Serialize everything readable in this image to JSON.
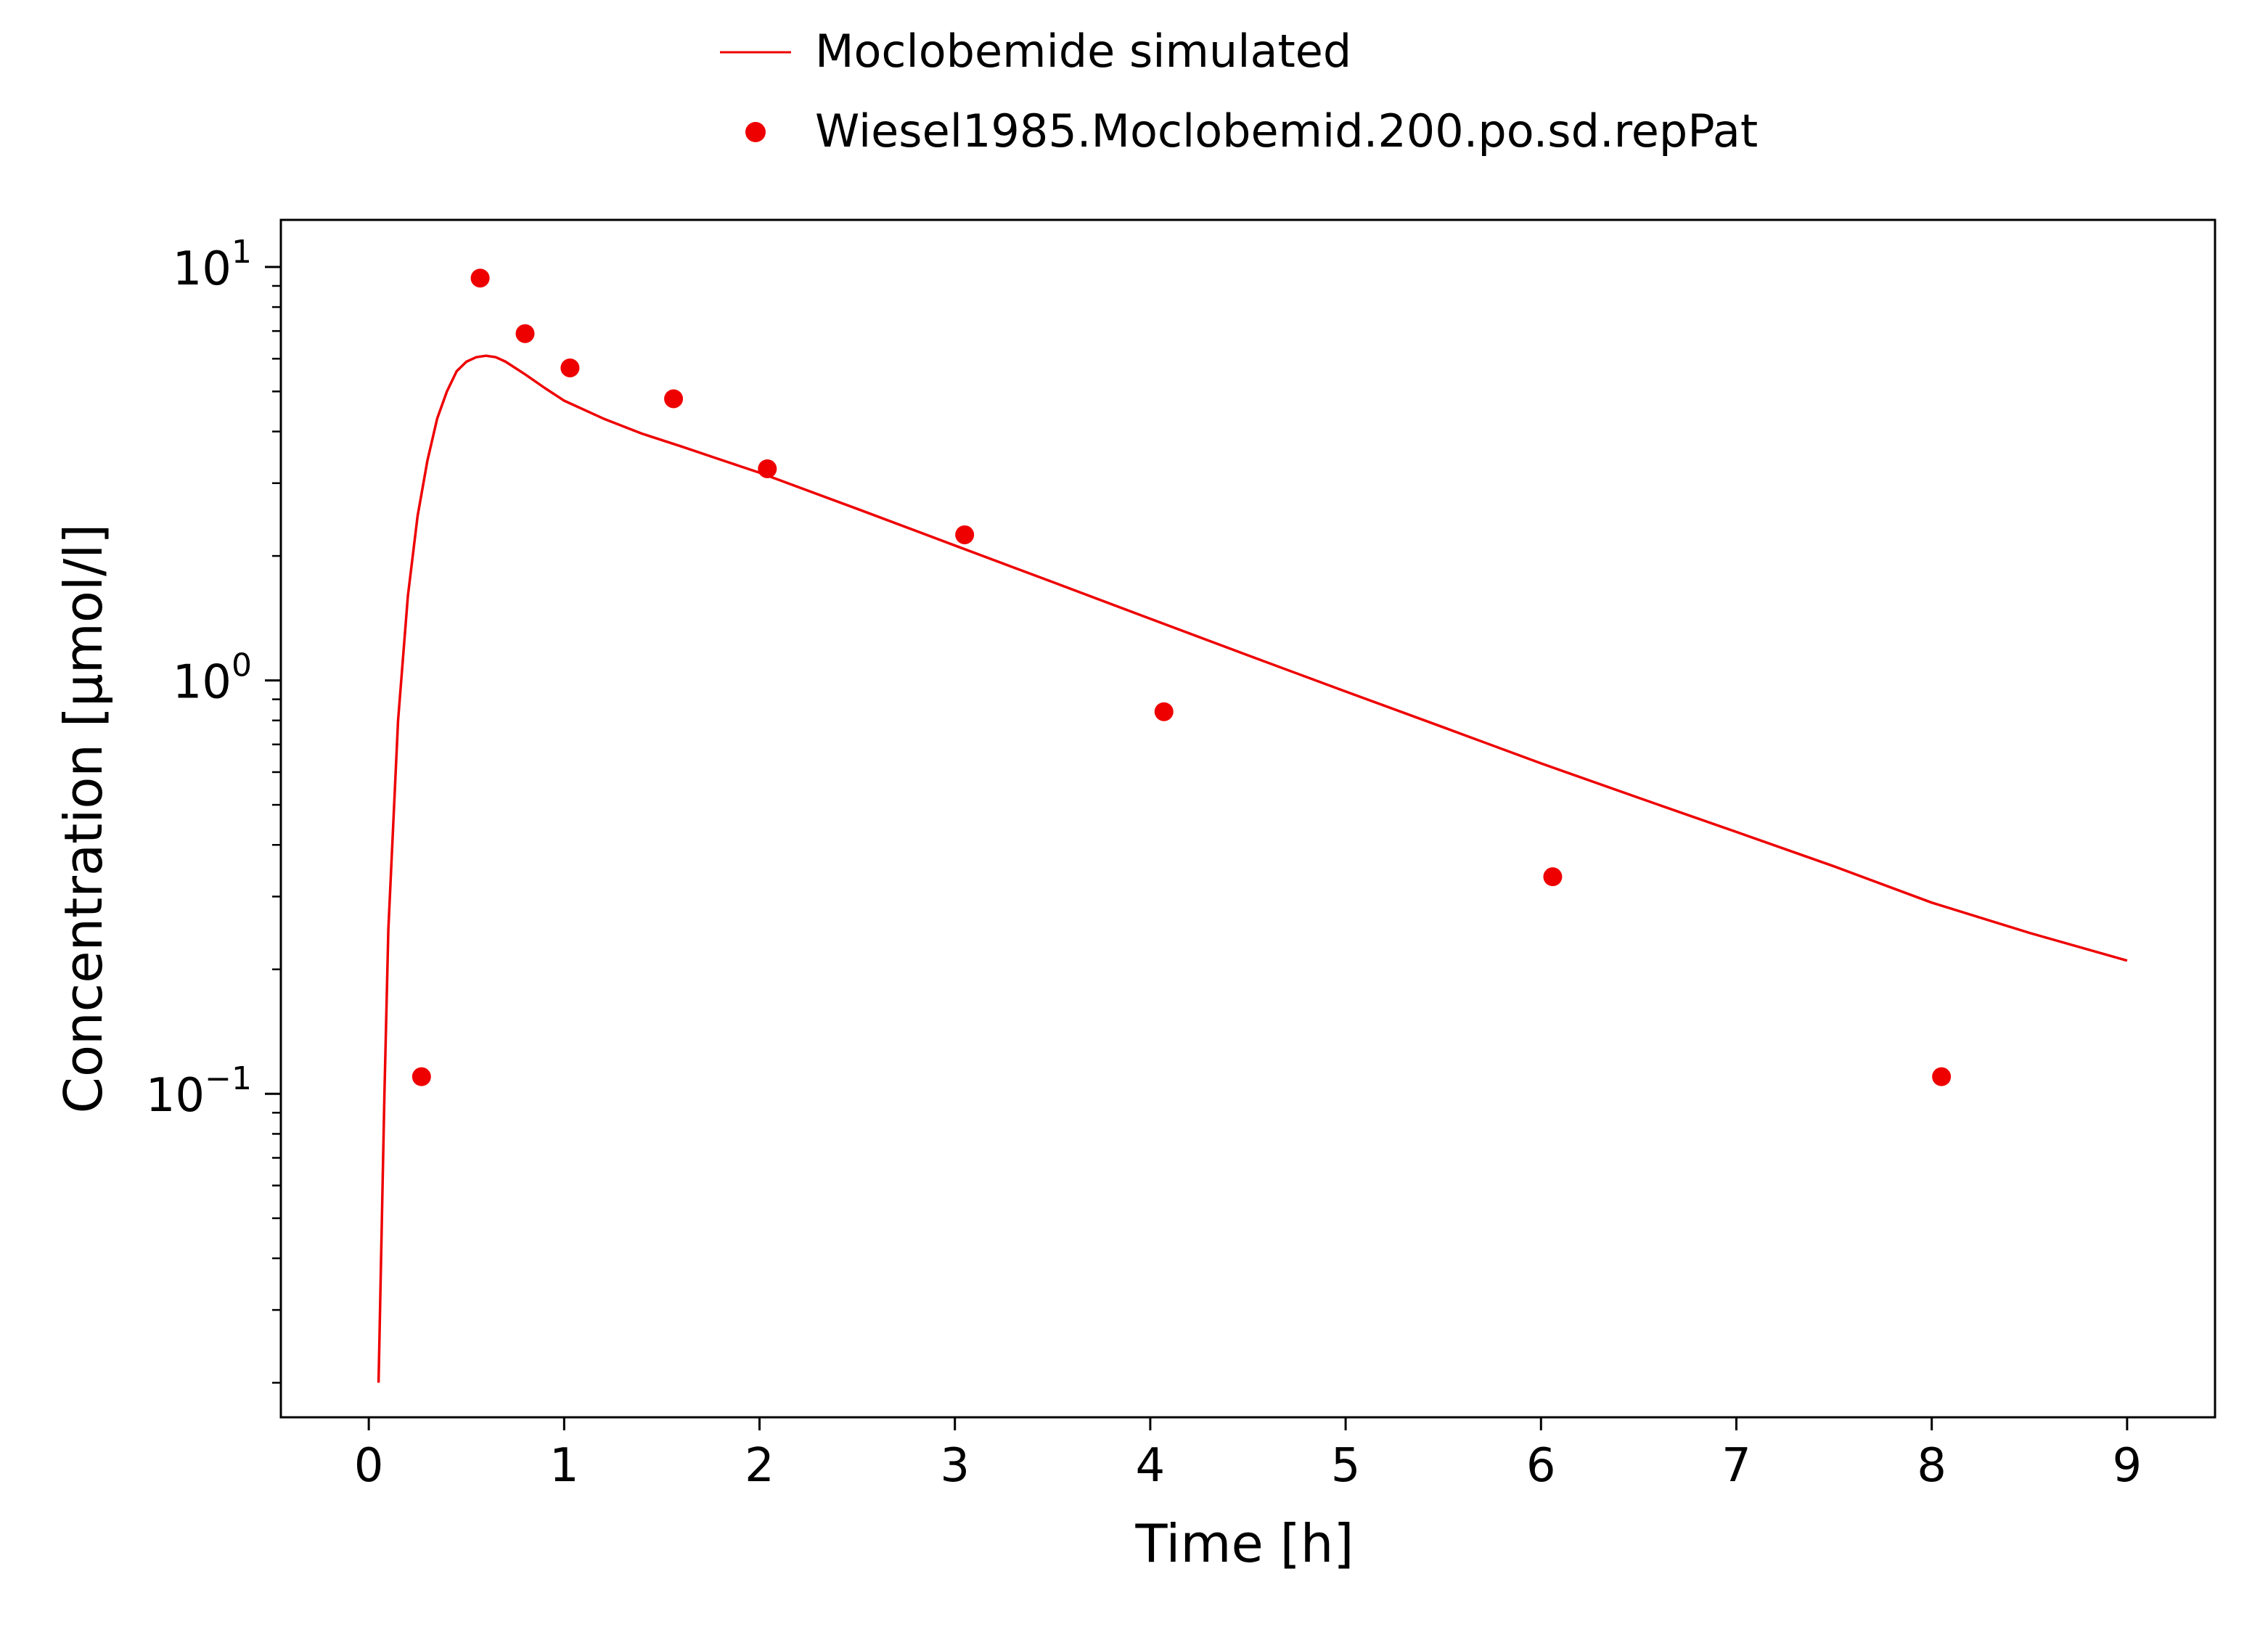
{
  "chart_data": {
    "type": "line",
    "title": "",
    "xlabel": "Time [h]",
    "ylabel": "Concentration [µmol/l]",
    "xlim": [
      -0.45,
      9.45
    ],
    "ylim": [
      0.0165,
      13
    ],
    "yscale": "log",
    "grid": false,
    "legend_position": "top-center",
    "x_ticks": [
      0,
      1,
      2,
      3,
      4,
      5,
      6,
      7,
      8,
      9
    ],
    "x_tick_labels": [
      "0",
      "1",
      "2",
      "3",
      "4",
      "5",
      "6",
      "7",
      "8",
      "9"
    ],
    "y_ticks": [
      0.1,
      1,
      10
    ],
    "y_tick_labels": [
      {
        "base": "10",
        "exp": "−1"
      },
      {
        "base": "10",
        "exp": "0"
      },
      {
        "base": "10",
        "exp": "1"
      }
    ],
    "series": [
      {
        "name": "Moclobemide simulated",
        "kind": "line",
        "color": "#ee0000",
        "x": [
          0.05,
          0.08,
          0.1,
          0.15,
          0.2,
          0.25,
          0.3,
          0.35,
          0.4,
          0.45,
          0.5,
          0.55,
          0.6,
          0.65,
          0.7,
          0.8,
          0.9,
          1.0,
          1.2,
          1.4,
          1.6,
          1.8,
          2.0,
          2.5,
          3.0,
          3.5,
          4.0,
          4.5,
          5.0,
          5.5,
          6.0,
          6.5,
          7.0,
          7.5,
          8.0,
          8.5,
          9.0
        ],
        "y": [
          0.02,
          0.1,
          0.25,
          0.8,
          1.6,
          2.5,
          3.4,
          4.3,
          5.0,
          5.6,
          5.9,
          6.05,
          6.1,
          6.05,
          5.9,
          5.5,
          5.1,
          4.75,
          4.3,
          3.95,
          3.68,
          3.42,
          3.18,
          2.6,
          2.12,
          1.73,
          1.41,
          1.15,
          0.94,
          0.77,
          0.63,
          0.52,
          0.43,
          0.355,
          0.29,
          0.245,
          0.21
        ]
      },
      {
        "name": "Wiesel1985.Moclobemid.200.po.sd.repPat",
        "kind": "scatter",
        "color": "#ee0000",
        "x": [
          0.27,
          0.57,
          0.8,
          1.03,
          1.56,
          2.04,
          3.05,
          4.07,
          6.06,
          8.05
        ],
        "y": [
          0.11,
          9.4,
          6.9,
          5.7,
          4.8,
          3.25,
          2.25,
          0.84,
          0.335,
          0.11
        ]
      }
    ]
  }
}
